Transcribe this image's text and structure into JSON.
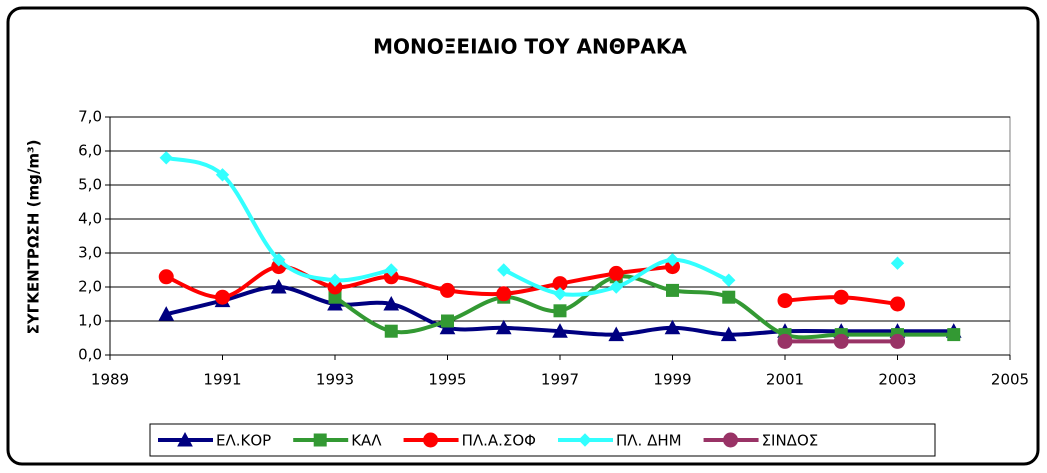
{
  "chart_data": {
    "type": "line",
    "title": "ΜΟΝΟΞΕΙΔΙΟ ΤΟΥ ΑΝΘΡΑΚΑ",
    "y_label": "ΣΥΓΚΕΝΤΡΩΣΗ (mg/m³)",
    "x": [
      1990,
      1991,
      1992,
      1993,
      1994,
      1995,
      1996,
      1997,
      1998,
      1999,
      2000,
      2001,
      2002,
      2003,
      2004
    ],
    "xlim": [
      1989,
      2005
    ],
    "xticks": [
      1989,
      1991,
      1993,
      1995,
      1997,
      1999,
      2001,
      2003,
      2005
    ],
    "ylim": [
      0,
      7
    ],
    "yticks": [
      {
        "value": 0,
        "label": "0,0"
      },
      {
        "value": 1,
        "label": "1,0"
      },
      {
        "value": 2,
        "label": "2,0"
      },
      {
        "value": 3,
        "label": "3,0"
      },
      {
        "value": 4,
        "label": "4,0"
      },
      {
        "value": 5,
        "label": "5,0"
      },
      {
        "value": 6,
        "label": "6,0"
      },
      {
        "value": 7,
        "label": "7,0"
      }
    ],
    "grid": true,
    "smooth": true,
    "legend": "bottom",
    "series": [
      {
        "name": "ΕΛ.ΚΟΡ",
        "color": "#000080",
        "marker": "triangle",
        "values": [
          1.2,
          1.6,
          2.0,
          1.5,
          1.5,
          0.8,
          0.8,
          0.7,
          0.6,
          0.8,
          0.6,
          0.7,
          0.7,
          0.7,
          0.7
        ]
      },
      {
        "name": "ΚΑΛ",
        "color": "#339933",
        "marker": "square",
        "values": [
          null,
          null,
          null,
          1.7,
          0.7,
          1.0,
          1.7,
          1.3,
          2.3,
          1.9,
          1.7,
          0.6,
          0.6,
          0.6,
          0.6
        ]
      },
      {
        "name": "ΠΛ.Α.ΣΟΦ",
        "color": "#ff0000",
        "marker": "circle",
        "values": [
          2.3,
          1.7,
          2.6,
          2.0,
          2.3,
          1.9,
          1.8,
          2.1,
          2.4,
          2.6,
          null,
          1.6,
          1.7,
          1.5,
          null
        ]
      },
      {
        "name": "ΠΛ. ΔΗΜ",
        "color": "#33ffff",
        "marker": "diamond",
        "values": [
          5.8,
          5.3,
          2.8,
          2.2,
          2.5,
          null,
          2.5,
          1.8,
          2.0,
          2.8,
          2.2,
          null,
          null,
          2.7,
          null
        ]
      },
      {
        "name": "ΣΙΝΔΟΣ",
        "color": "#993366",
        "marker": "circle",
        "values": [
          null,
          null,
          null,
          null,
          null,
          null,
          null,
          null,
          null,
          null,
          null,
          0.4,
          0.4,
          0.4,
          null
        ]
      }
    ]
  }
}
